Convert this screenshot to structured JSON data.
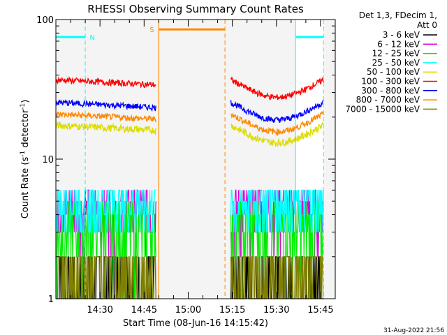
{
  "chart_data": {
    "type": "line",
    "title": "RHESSI Observing Summary Count Rates",
    "xlabel": "Start Time (08-Jun-16 14:15:42)",
    "ylabel_main": "Count Rate (s",
    "ylabel_sup1": "-1",
    "ylabel_mid": " detector",
    "ylabel_sup2": "-1",
    "ylabel_end": ")",
    "yscale": "log",
    "ylim": [
      1,
      100
    ],
    "xlim_minutes": [
      0,
      95
    ],
    "y_ticks": [
      {
        "value": 1,
        "label": "1"
      },
      {
        "value": 10,
        "label": "10"
      },
      {
        "value": 100,
        "label": "100"
      }
    ],
    "x_ticks": [
      {
        "value": 15,
        "label": "14:30"
      },
      {
        "value": 30,
        "label": "14:45"
      },
      {
        "value": 45,
        "label": "15:00"
      },
      {
        "value": 60,
        "label": "15:15"
      },
      {
        "value": 75,
        "label": "15:30"
      },
      {
        "value": 90,
        "label": "15:45"
      }
    ],
    "legend_header": [
      "Det 1,3, FDecim 1,",
      "Att 0"
    ],
    "legend_placement": "right",
    "segments": [
      [
        0,
        34
      ],
      [
        59.5,
        91
      ]
    ],
    "series": [
      {
        "name": "3 - 6 keV",
        "color": "#000000",
        "level": 1.4,
        "spread": 0.25
      },
      {
        "name": "6 - 12 keV",
        "color": "#dd00dd",
        "level": 4.3,
        "spread": 0.25
      },
      {
        "name": "12 - 25 keV",
        "color": "#00ee00",
        "level": 3.2,
        "spread": 0.3
      },
      {
        "name": "25 - 50 keV",
        "color": "#00ffff",
        "level": 5.0,
        "spread": 0.25
      },
      {
        "name": "50 - 100 keV",
        "color": "#dddd00",
        "level": 17.5,
        "spread": 0.06
      },
      {
        "name": "100 - 300 keV",
        "color": "#ff0000",
        "level": 37.0,
        "spread": 0.05
      },
      {
        "name": "300 - 800 keV",
        "color": "#0000ff",
        "level": 25.5,
        "spread": 0.05
      },
      {
        "name": "800 - 7000 keV",
        "color": "#ff8800",
        "level": 21.0,
        "spread": 0.05
      },
      {
        "name": "7000 - 15000 keV",
        "color": "#808000",
        "level": 1.5,
        "spread": 0.3
      }
    ],
    "annotations": [
      {
        "label": "N",
        "color": "#00ffff",
        "x_start": 0,
        "x_end": 10,
        "y": 75,
        "boundary": 10
      },
      {
        "label": "S",
        "color": "#ff8800",
        "x_start": 35,
        "x_end": 57.5,
        "y": 85,
        "boundary": 57.5
      },
      {
        "label": "",
        "color": "#00ffff",
        "x_start": 81.5,
        "x_end": 91,
        "y": 75,
        "boundary": 91
      }
    ],
    "night_markers": [
      {
        "color": "#00ffff",
        "x": 0
      },
      {
        "color": "#00ffff",
        "x": 81.5
      }
    ],
    "saa_marker": {
      "color": "#ff8800",
      "x": 35
    }
  },
  "footer": {
    "timestamp": "31-Aug-2022 21:56"
  }
}
